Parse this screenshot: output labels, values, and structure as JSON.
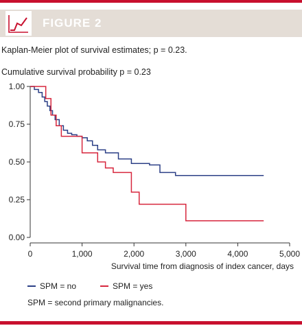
{
  "header": {
    "title": "FIGURE 2",
    "icon": "line-chart-icon"
  },
  "caption": "Kaplan-Meier plot of survival estimates; p = 0.23.",
  "footnote": "SPM = second primary malignancies.",
  "colors": {
    "accent": "#c8102e",
    "header_bg": "#e4ddd6",
    "series_no": "#2b3f86",
    "series_yes": "#d7263d",
    "axis": "#333333"
  },
  "chart_data": {
    "type": "line",
    "step": true,
    "title": "Cumulative survival probability p = 0.23",
    "xlabel": "Survival time from diagnosis of index cancer, days",
    "ylabel": "",
    "xlim": [
      0,
      5000
    ],
    "ylim": [
      0,
      1
    ],
    "xticks": [
      0,
      1000,
      2000,
      3000,
      4000,
      5000
    ],
    "xtick_labels": [
      "0",
      "1,000",
      "2,000",
      "3,000",
      "4,000",
      "5,000"
    ],
    "yticks": [
      0,
      0.25,
      0.5,
      0.75,
      1.0
    ],
    "ytick_labels": [
      "0.00",
      "0.25",
      "0.50",
      "0.75",
      "1.00"
    ],
    "grid": false,
    "legend_position": "bottom-left",
    "series": [
      {
        "name": "SPM = no",
        "color": "#2b3f86",
        "x": [
          0,
          80,
          160,
          230,
          280,
          330,
          380,
          430,
          480,
          560,
          640,
          720,
          800,
          900,
          1000,
          1100,
          1200,
          1300,
          1450,
          1700,
          1950,
          2300,
          2500,
          2800,
          4500
        ],
        "y": [
          1.0,
          0.98,
          0.96,
          0.93,
          0.9,
          0.87,
          0.84,
          0.81,
          0.78,
          0.74,
          0.71,
          0.69,
          0.68,
          0.67,
          0.66,
          0.64,
          0.61,
          0.58,
          0.56,
          0.52,
          0.49,
          0.48,
          0.43,
          0.41,
          0.41
        ]
      },
      {
        "name": "SPM = yes",
        "color": "#d7263d",
        "x": [
          0,
          300,
          400,
          500,
          600,
          1000,
          1300,
          1450,
          1600,
          1950,
          2100,
          2200,
          3000,
          4500
        ],
        "y": [
          1.0,
          0.92,
          0.81,
          0.74,
          0.67,
          0.56,
          0.5,
          0.46,
          0.43,
          0.3,
          0.22,
          0.22,
          0.11,
          0.11
        ]
      }
    ]
  }
}
